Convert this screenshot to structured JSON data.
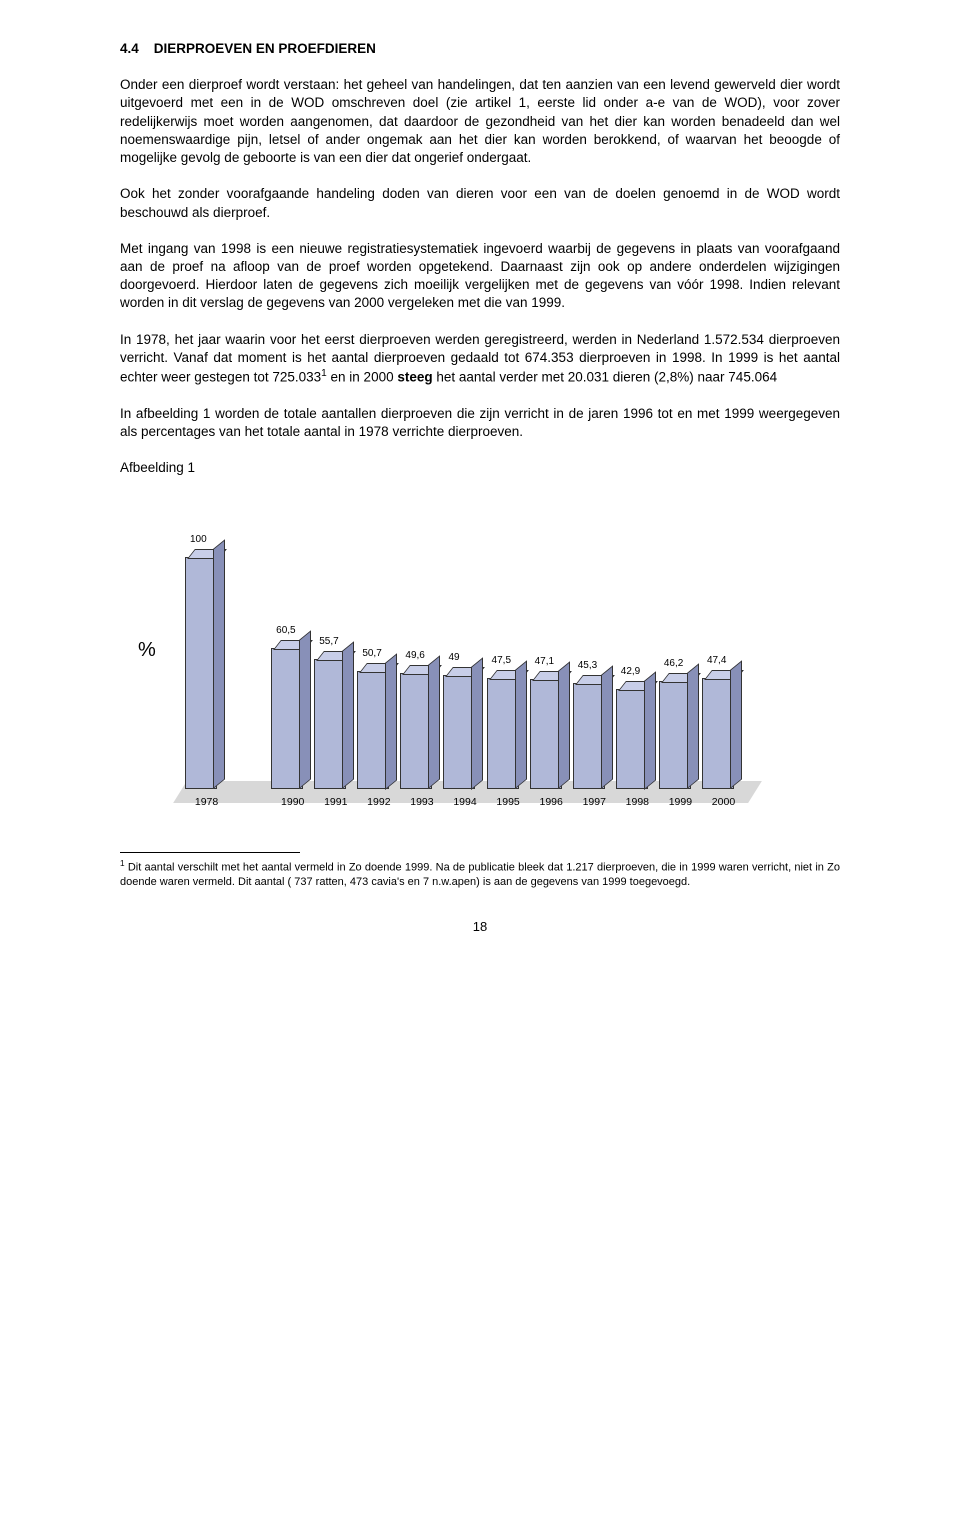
{
  "section_number": "4.4",
  "section_title": "DIERPROEVEN EN PROEFDIEREN",
  "paragraphs": {
    "p1": "Onder een dierproef wordt verstaan: het geheel van handelingen, dat ten aanzien van een levend gewerveld dier wordt uitgevoerd met een in de WOD omschreven doel (zie artikel 1, eerste lid onder a-e van de WOD), voor zover redelijkerwijs moet worden aangenomen, dat daardoor de gezondheid van het dier kan worden benadeeld dan wel noemenswaardige pijn, letsel of ander ongemak aan het dier kan worden berokkend, of waarvan het beoogde of mogelijke gevolg de geboorte is van een dier dat ongerief ondergaat.",
    "p2": "Ook het zonder voorafgaande handeling doden van dieren voor een van de doelen genoemd in de WOD wordt beschouwd als dierproef.",
    "p3": "Met ingang van 1998 is een nieuwe registratiesystematiek ingevoerd waarbij de gegevens in plaats van voorafgaand aan de proef na afloop van de proef worden opgetekend. Daarnaast zijn ook op andere onderdelen wijzigingen doorgevoerd. Hierdoor laten de gegevens zich moeilijk vergelijken met de gegevens van vóór 1998. Indien relevant worden in dit verslag de gegevens van 2000 vergeleken met die van 1999.",
    "p4a": "In 1978, het jaar waarin voor het eerst dierproeven werden geregistreerd, werden in Nederland 1.572.534 dierproeven verricht. Vanaf dat moment is het aantal dierproeven gedaald tot 674.353 dierproeven in 1998. In 1999 is het aantal echter weer gestegen tot 725.033",
    "p4b": " en in 2000 ",
    "p4_strong": "steeg",
    "p4c": " het aantal verder met 20.031 dieren (2,8%) naar 745.064",
    "p5": "In afbeelding 1 worden de totale aantallen dierproeven die zijn verricht in de jaren 1996 tot en met 1999 weergegeven als percentages van het totale aantal in 1978 verrichte dierproeven.",
    "figure_label": "Afbeelding 1",
    "footnote_marker": "1",
    "footnote": "Dit aantal verschilt met het aantal vermeld in Zo doende 1999. Na de publicatie bleek dat 1.217 dierproeven, die in 1999 waren verricht, niet in Zo doende waren vermeld. Dit aantal ( 737 ratten, 473 cavia's en 7 n.w.apen) is aan de gegevens van 1999 toegevoegd.",
    "page_number": "18"
  },
  "chart": {
    "y_label": "%",
    "bar_front_color": "#b0b8d8",
    "bar_top_color": "#c8cee8",
    "bar_side_color": "#8890b8",
    "max_value": 110,
    "pixel_scale": 2.3,
    "bars": [
      {
        "label": "1978",
        "value": 100,
        "text": "100",
        "gap_after": true
      },
      {
        "label": "1990",
        "value": 60.5,
        "text": "60,5",
        "gap_after": false
      },
      {
        "label": "1991",
        "value": 55.7,
        "text": "55,7",
        "gap_after": false
      },
      {
        "label": "1992",
        "value": 50.7,
        "text": "50,7",
        "gap_after": false
      },
      {
        "label": "1993",
        "value": 49.6,
        "text": "49,6",
        "gap_after": false
      },
      {
        "label": "1994",
        "value": 49,
        "text": "49",
        "gap_after": false
      },
      {
        "label": "1995",
        "value": 47.5,
        "text": "47,5",
        "gap_after": false
      },
      {
        "label": "1996",
        "value": 47.1,
        "text": "47,1",
        "gap_after": false
      },
      {
        "label": "1997",
        "value": 45.3,
        "text": "45,3",
        "gap_after": false
      },
      {
        "label": "1998",
        "value": 42.9,
        "text": "42,9",
        "gap_after": false
      },
      {
        "label": "1999",
        "value": 46.2,
        "text": "46,2",
        "gap_after": false
      },
      {
        "label": "2000",
        "value": 47.4,
        "text": "47,4",
        "gap_after": false
      }
    ]
  }
}
